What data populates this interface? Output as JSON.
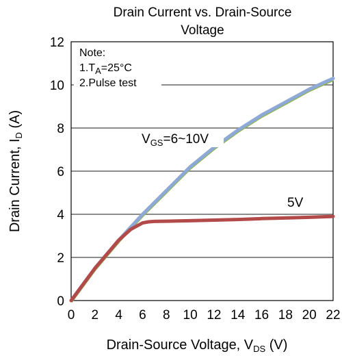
{
  "chart_data": {
    "type": "line",
    "title_line1": "Drain Current vs. Drain-Source",
    "title_line2": "Voltage",
    "xlabel": {
      "main": "Drain-Source Voltage, V",
      "sub": "DS",
      "unit": " (V)"
    },
    "ylabel": {
      "main": "Drain Current, I",
      "sub": "D",
      "unit": " (A)"
    },
    "xlim": [
      0,
      22
    ],
    "ylim": [
      0,
      12
    ],
    "xticks": [
      0,
      2,
      4,
      6,
      8,
      10,
      12,
      14,
      16,
      18,
      20,
      22
    ],
    "yticks": [
      0,
      2,
      4,
      6,
      8,
      10,
      12
    ],
    "grid": "horizontal",
    "note": {
      "line1": "Note:",
      "line2_prefix": "1.T",
      "line2_sub": "A",
      "line2_suffix": "=25°C",
      "line3": "2.Pulse test"
    },
    "labels": {
      "vgs_prefix": "V",
      "vgs_sub": "GS",
      "vgs_suffix": "=6~10V",
      "v5": "5V"
    },
    "series": [
      {
        "name": "VGS=6~10V",
        "color": "#8fa9d6",
        "underlay_color": "#8ab34a",
        "x": [
          0,
          2,
          4,
          6,
          8,
          10,
          12,
          14,
          16,
          18,
          20,
          22
        ],
        "y": [
          0,
          1.5,
          2.8,
          4.0,
          5.1,
          6.2,
          7.1,
          7.9,
          8.6,
          9.2,
          9.8,
          10.3
        ]
      },
      {
        "name": "5V",
        "color": "#b24a4a",
        "x": [
          0,
          2,
          4,
          5,
          6,
          6.5,
          7,
          8,
          10,
          12,
          14,
          16,
          18,
          20,
          22
        ],
        "y": [
          0,
          1.5,
          2.8,
          3.3,
          3.6,
          3.65,
          3.67,
          3.68,
          3.7,
          3.73,
          3.76,
          3.8,
          3.83,
          3.86,
          3.9
        ]
      }
    ]
  }
}
